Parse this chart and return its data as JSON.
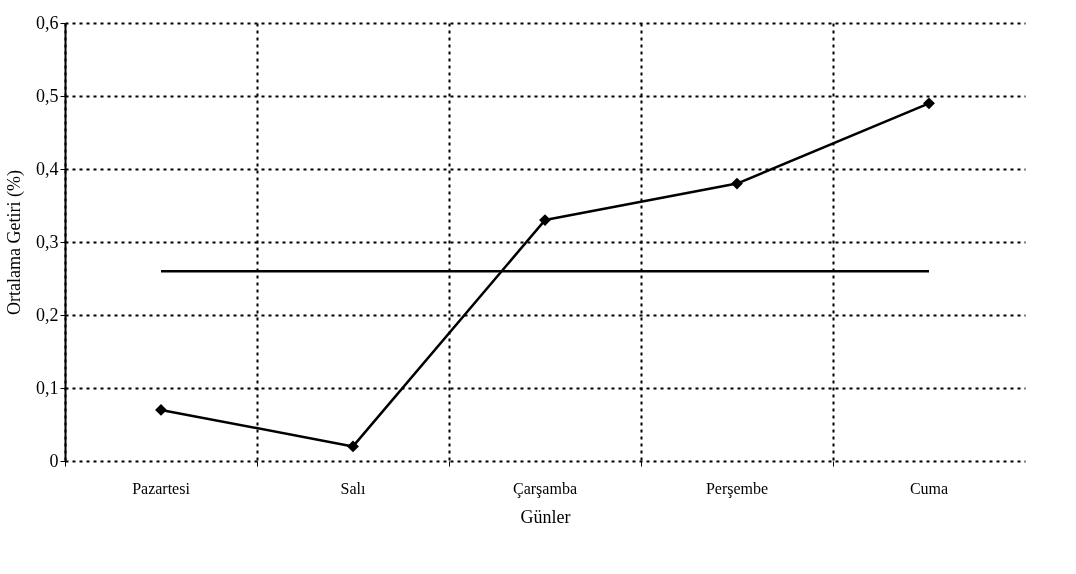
{
  "chart_data": {
    "type": "line",
    "xlabel": "Günler",
    "ylabel": "Ortalama Getiri (%)",
    "categories": [
      "Pazartesi",
      "Salı",
      "Çarşamba",
      "Perşembe",
      "Cuma"
    ],
    "series": [
      {
        "color": "#000000",
        "values": [
          0.07,
          0.02,
          0.33,
          0.38,
          0.49
        ]
      }
    ],
    "ylim": [
      0,
      0.6
    ],
    "yticks": [
      0,
      {
        "value": 0.1,
        "label": "0,1"
      },
      {
        "value": 0.2,
        "label": "0,2"
      },
      {
        "value": 0.3,
        "label": "0,3"
      },
      {
        "value": 0.4,
        "label": "0,4"
      },
      {
        "value": 0.5,
        "label": "0,5"
      },
      {
        "value": 0.6,
        "label": "0,6"
      }
    ],
    "ref_lines": [
      {
        "axis": "y",
        "value": 0.26,
        "color": "#000000",
        "line_style": "solid"
      }
    ],
    "grid": true,
    "marker": "diamond",
    "line_style": "solid"
  }
}
